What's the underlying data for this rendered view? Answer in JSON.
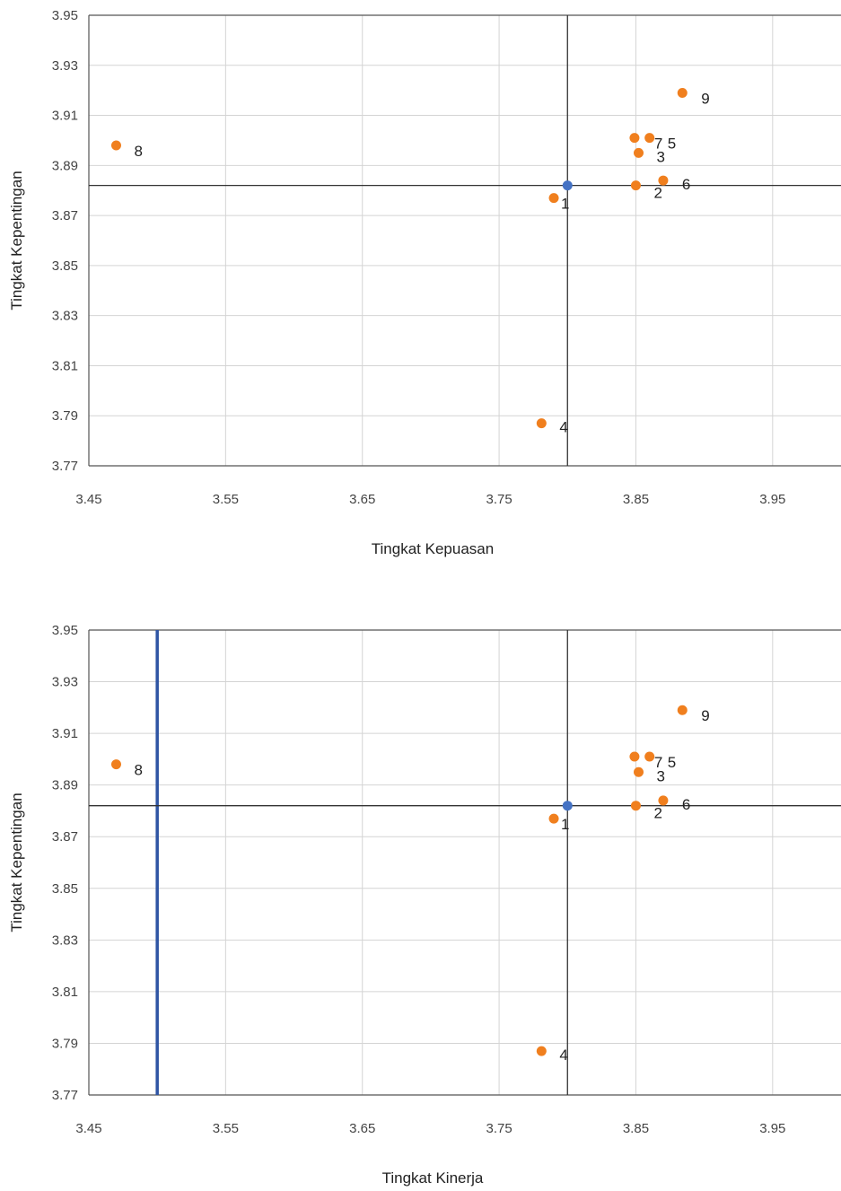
{
  "chart_data": [
    {
      "type": "scatter",
      "title": "",
      "xlabel": "Tingkat Kepuasan",
      "ylabel": "Tingkat Kepentingan",
      "xlim": [
        3.45,
        4.0
      ],
      "ylim": [
        3.77,
        3.95
      ],
      "xticks": [
        "3.45",
        "3.55",
        "3.65",
        "3.75",
        "3.85",
        "3.95"
      ],
      "yticks": [
        "3.95",
        "3.93",
        "3.91",
        "3.89",
        "3.87",
        "3.85",
        "3.83",
        "3.81",
        "3.79",
        "3.77"
      ],
      "grid": true,
      "points": [
        {
          "label": "1",
          "x": 3.79,
          "y": 3.877,
          "color": "#F07F1E"
        },
        {
          "label": "2",
          "x": 3.85,
          "y": 3.882,
          "color": "#F07F1E"
        },
        {
          "label": "3",
          "x": 3.852,
          "y": 3.895,
          "color": "#F07F1E"
        },
        {
          "label": "4",
          "x": 3.781,
          "y": 3.787,
          "color": "#F07F1E"
        },
        {
          "label": "5",
          "x": 3.86,
          "y": 3.901,
          "color": "#F07F1E"
        },
        {
          "label": "6",
          "x": 3.87,
          "y": 3.884,
          "color": "#F07F1E"
        },
        {
          "label": "7",
          "x": 3.849,
          "y": 3.901,
          "color": "#F07F1E"
        },
        {
          "label": "8",
          "x": 3.47,
          "y": 3.898,
          "color": "#F07F1E"
        },
        {
          "label": "9",
          "x": 3.884,
          "y": 3.919,
          "color": "#F07F1E"
        }
      ],
      "mean_point": {
        "x": 3.8,
        "y": 3.882,
        "color": "#4472C4"
      },
      "reference_lines": {
        "x": 3.8,
        "y": 3.882
      }
    },
    {
      "type": "scatter",
      "title": "",
      "xlabel": "Tingkat Kinerja",
      "ylabel": "Tingkat Kepentingan",
      "xlim": [
        3.45,
        4.0
      ],
      "ylim": [
        3.77,
        3.95
      ],
      "xticks": [
        "3.45",
        "3.55",
        "3.65",
        "3.75",
        "3.85",
        "3.95"
      ],
      "yticks": [
        "3.95",
        "3.93",
        "3.91",
        "3.89",
        "3.87",
        "3.85",
        "3.83",
        "3.81",
        "3.79",
        "3.77"
      ],
      "grid": true,
      "points": [
        {
          "label": "1",
          "x": 3.79,
          "y": 3.877,
          "color": "#F07F1E"
        },
        {
          "label": "2",
          "x": 3.85,
          "y": 3.882,
          "color": "#F07F1E"
        },
        {
          "label": "3",
          "x": 3.852,
          "y": 3.895,
          "color": "#F07F1E"
        },
        {
          "label": "4",
          "x": 3.781,
          "y": 3.787,
          "color": "#F07F1E"
        },
        {
          "label": "5",
          "x": 3.86,
          "y": 3.901,
          "color": "#F07F1E"
        },
        {
          "label": "6",
          "x": 3.87,
          "y": 3.884,
          "color": "#F07F1E"
        },
        {
          "label": "7",
          "x": 3.849,
          "y": 3.901,
          "color": "#F07F1E"
        },
        {
          "label": "8",
          "x": 3.47,
          "y": 3.898,
          "color": "#F07F1E"
        },
        {
          "label": "9",
          "x": 3.884,
          "y": 3.919,
          "color": "#F07F1E"
        }
      ],
      "mean_point": {
        "x": 3.8,
        "y": 3.882,
        "color": "#4472C4"
      },
      "reference_lines": {
        "x": 3.8,
        "y": 3.882
      },
      "highlight_vline": {
        "x": 3.5,
        "color": "#2F55A4"
      }
    }
  ]
}
